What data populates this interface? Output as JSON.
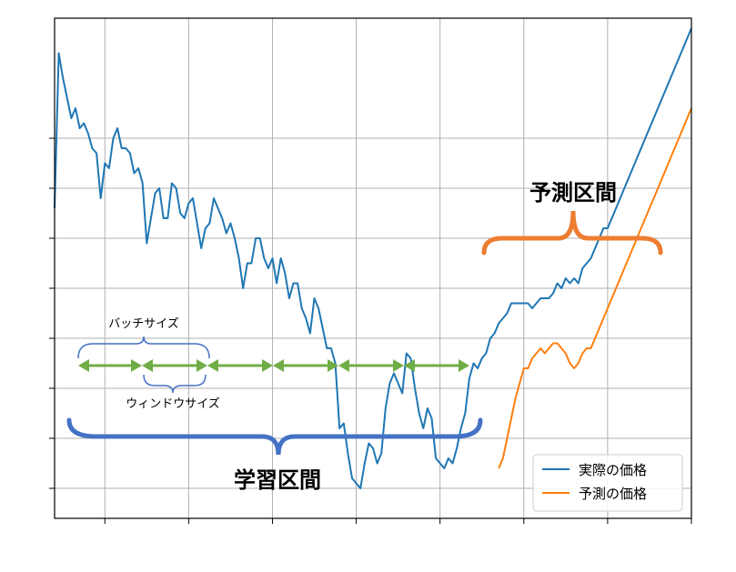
{
  "chart_data": {
    "type": "line",
    "title": "",
    "xlabel": "",
    "ylabel": "",
    "xlim": [
      0,
      760
    ],
    "ylim": [
      0,
      100
    ],
    "x_ticks": [
      60,
      160,
      260,
      360,
      460,
      560,
      660,
      760
    ],
    "y_ticks": [
      6,
      16,
      26,
      36,
      46,
      56,
      66,
      76
    ],
    "x_tick_labels_visible": false,
    "y_tick_labels_visible": false,
    "grid": true,
    "legend_position": "bottom-right",
    "series": [
      {
        "name": "実際の価格",
        "color": "#1f77b4",
        "x": [
          0,
          5,
          10,
          15,
          20,
          25,
          30,
          35,
          40,
          45,
          50,
          55,
          60,
          65,
          70,
          75,
          80,
          85,
          90,
          95,
          100,
          105,
          110,
          115,
          120,
          125,
          130,
          135,
          140,
          145,
          150,
          155,
          160,
          165,
          170,
          175,
          180,
          185,
          190,
          195,
          200,
          205,
          210,
          215,
          220,
          225,
          230,
          235,
          240,
          245,
          250,
          255,
          260,
          265,
          270,
          275,
          280,
          285,
          290,
          295,
          300,
          305,
          310,
          315,
          320,
          325,
          330,
          335,
          340,
          345,
          350,
          355,
          360,
          365,
          370,
          375,
          380,
          385,
          390,
          395,
          400,
          405,
          410,
          415,
          420,
          425,
          430,
          435,
          440,
          445,
          450,
          455,
          460,
          465,
          470,
          475,
          480,
          485,
          490,
          495,
          500,
          505,
          510,
          515,
          520,
          525,
          530,
          535,
          540,
          545,
          550,
          555,
          560,
          565,
          570,
          575,
          580,
          585,
          590,
          595,
          600,
          605,
          610,
          615,
          620,
          625,
          630,
          635,
          640,
          645,
          650,
          655,
          660,
          665,
          670,
          675,
          680,
          685,
          690,
          695,
          700,
          705,
          710,
          715,
          720,
          725,
          730,
          735,
          740,
          745,
          750,
          755,
          760
        ],
        "values": [
          62.0,
          93.0,
          88.0,
          84.0,
          80.0,
          82.0,
          78.0,
          79.0,
          77.0,
          74.0,
          73.0,
          64.0,
          71.0,
          70.0,
          76.0,
          78.0,
          74.0,
          74.0,
          73.0,
          69.0,
          70.0,
          67.0,
          55.0,
          60.0,
          65.0,
          66.0,
          60.0,
          60.0,
          67.0,
          66.0,
          61.0,
          60.0,
          63.0,
          64.0,
          59.0,
          54.0,
          58.0,
          59.0,
          64.0,
          62.0,
          60.0,
          57.0,
          59.0,
          56.0,
          52.0,
          46.0,
          51.0,
          51.0,
          56.0,
          56.0,
          52.0,
          50.0,
          52.0,
          47.0,
          52.0,
          49.0,
          44.0,
          47.0,
          47.0,
          42.0,
          40.0,
          37.0,
          44.0,
          42.0,
          38.0,
          34.0,
          34.0,
          31.0,
          18.0,
          19.0,
          13.0,
          8.0,
          7.0,
          6.0,
          11.0,
          15.0,
          14.0,
          11.0,
          13.0,
          22.0,
          27.0,
          29.0,
          27.0,
          25.0,
          33.0,
          32.0,
          26.0,
          21.0,
          18.0,
          22.0,
          20.0,
          12.0,
          11.0,
          10.0,
          12.0,
          11.0,
          14.0,
          18.0,
          21.0,
          28.0,
          31.0,
          30.0,
          32.0,
          33.0,
          36.0,
          37.0,
          39.0,
          40.0,
          41.0,
          43.0,
          43.0,
          43.0,
          43.0,
          43.0,
          42.0,
          43.0,
          44.0,
          44.0,
          44.0,
          45.0,
          47.0,
          46.0,
          48.0,
          47.0,
          48.0,
          47.0,
          50.0,
          51.0,
          52.0,
          54.0,
          56.0,
          58.0,
          58.0,
          60.0,
          62.0,
          64.0,
          66.0,
          68.0,
          70.0,
          72.0,
          74.0,
          76.0,
          78.0,
          80.0,
          82.0,
          84.0,
          86.0,
          88.0,
          90.0,
          92.0,
          94.0,
          96.0,
          98.0
        ]
      },
      {
        "name": "予測の価格",
        "color": "#ff7f0e",
        "x": [
          530,
          535,
          540,
          545,
          550,
          555,
          560,
          565,
          570,
          575,
          580,
          585,
          590,
          595,
          600,
          605,
          610,
          615,
          620,
          625,
          630,
          635,
          640,
          645,
          650,
          655,
          660,
          665,
          670,
          675,
          680,
          685,
          690,
          695,
          700,
          705,
          710,
          715,
          720,
          725,
          730,
          735,
          740,
          745,
          750,
          755,
          760
        ],
        "values": [
          10.0,
          12.0,
          16.0,
          20.0,
          24.0,
          27.0,
          30.0,
          30.0,
          32.0,
          33.0,
          34.0,
          33.0,
          34.0,
          35.0,
          35.0,
          34.0,
          33.0,
          31.0,
          30.0,
          31.0,
          33.0,
          34.0,
          34.0,
          36.0,
          38.0,
          40.0,
          42.0,
          44.0,
          46.0,
          48.0,
          50.0,
          52.0,
          54.0,
          56.0,
          58.0,
          60.0,
          62.0,
          64.0,
          66.0,
          68.0,
          70.0,
          72.0,
          74.0,
          76.0,
          78.0,
          80.0,
          82.0
        ]
      }
    ],
    "annotations": {
      "batch_size": "バッチサイズ",
      "window_size": "ウィンドウサイズ",
      "training_interval": "学習区間",
      "prediction_interval": "予測区間"
    }
  },
  "colors": {
    "actual": "#1f77b4",
    "predicted": "#ff7f0e",
    "training_brace": "#4472c4",
    "prediction_brace": "#ed7d31",
    "window_arrows": "#70ad47",
    "grid": "#b0b0b0"
  }
}
